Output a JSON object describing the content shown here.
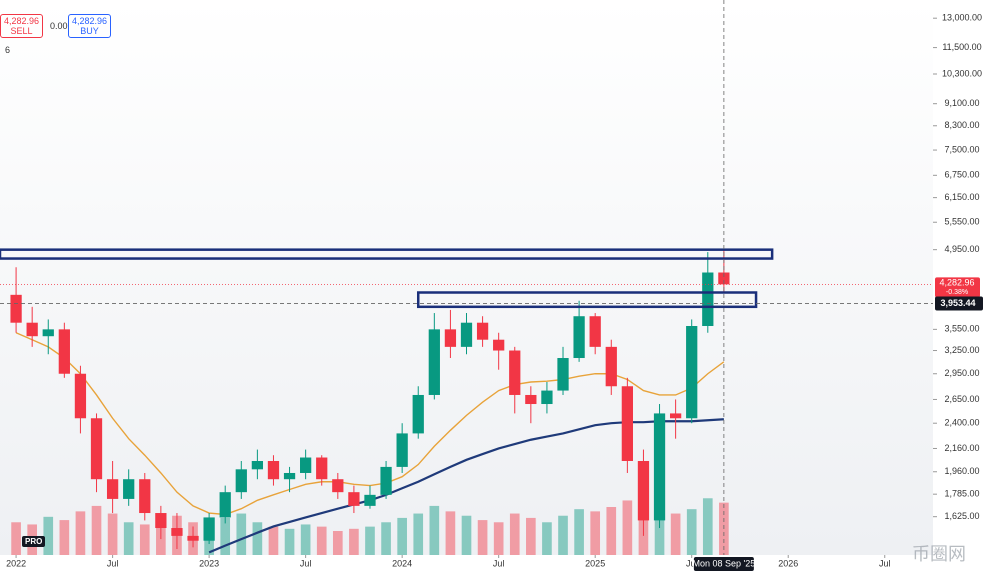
{
  "chart_data": {
    "type": "candlestick",
    "log_scale": true,
    "up_color": "#089981",
    "down_color": "#f23645",
    "x": [
      "2022-01",
      "2022-02",
      "2022-03",
      "2022-04",
      "2022-05",
      "2022-06",
      "2022-07",
      "2022-08",
      "2022-09",
      "2022-10",
      "2022-11",
      "2022-12",
      "2023-01",
      "2023-02",
      "2023-03",
      "2023-04",
      "2023-05",
      "2023-06",
      "2023-07",
      "2023-08",
      "2023-09",
      "2023-10",
      "2023-11",
      "2023-12",
      "2024-01",
      "2024-02",
      "2024-03",
      "2024-04",
      "2024-05",
      "2024-06",
      "2024-07",
      "2024-08",
      "2024-09",
      "2024-10",
      "2024-11",
      "2024-12",
      "2025-01",
      "2025-02",
      "2025-03",
      "2025-04",
      "2025-05",
      "2025-06",
      "2025-07",
      "2025-08",
      "2025-09"
    ],
    "candles": {
      "open": [
        4100,
        3650,
        3450,
        3550,
        2950,
        2450,
        1900,
        1750,
        1900,
        1650,
        1550,
        1500,
        1470,
        1620,
        1800,
        1980,
        2050,
        1900,
        1950,
        2080,
        1900,
        1800,
        1700,
        1780,
        2000,
        2300,
        2700,
        3550,
        3300,
        3650,
        3400,
        3250,
        2700,
        2600,
        2750,
        3150,
        3750,
        3300,
        2800,
        2050,
        1600,
        2500,
        2450,
        3600,
        4500
      ],
      "high": [
        4600,
        3900,
        3700,
        3650,
        3050,
        2500,
        2050,
        1980,
        1950,
        1700,
        1650,
        1560,
        1650,
        1850,
        2050,
        2150,
        2100,
        2000,
        2150,
        2100,
        1950,
        1850,
        1850,
        2050,
        2400,
        2800,
        3800,
        3850,
        3800,
        3750,
        3500,
        3300,
        2800,
        2850,
        3300,
        4000,
        3800,
        3400,
        2900,
        2150,
        2600,
        2650,
        3700,
        4900,
        4950
      ],
      "low": [
        3500,
        3300,
        3200,
        2900,
        2300,
        1800,
        1650,
        1700,
        1600,
        1480,
        1420,
        1430,
        1450,
        1580,
        1750,
        1900,
        1850,
        1800,
        1900,
        1850,
        1750,
        1650,
        1680,
        1750,
        1950,
        2250,
        2650,
        3150,
        3200,
        3300,
        3000,
        2500,
        2400,
        2500,
        2700,
        3100,
        3200,
        2700,
        1950,
        1500,
        1550,
        2250,
        2400,
        3500,
        4150
      ],
      "close": [
        3650,
        3450,
        3550,
        2950,
        2450,
        1900,
        1750,
        1900,
        1650,
        1550,
        1500,
        1470,
        1620,
        1800,
        1980,
        2050,
        1900,
        1950,
        2080,
        1900,
        1800,
        1700,
        1780,
        2000,
        2300,
        2700,
        3550,
        3300,
        3650,
        3400,
        3250,
        2700,
        2600,
        2750,
        3150,
        3750,
        3300,
        2800,
        2050,
        1600,
        2500,
        2450,
        3600,
        4500,
        4282.96
      ]
    },
    "volume": [
      30,
      28,
      35,
      32,
      40,
      45,
      38,
      30,
      28,
      33,
      36,
      30,
      32,
      34,
      38,
      30,
      26,
      24,
      28,
      26,
      22,
      24,
      26,
      30,
      34,
      38,
      45,
      40,
      36,
      32,
      30,
      38,
      34,
      30,
      36,
      42,
      40,
      44,
      50,
      55,
      45,
      38,
      42,
      52,
      48
    ],
    "series": [
      {
        "color": "#e8a33a",
        "values": [
          3500,
          3400,
          3300,
          3150,
          2950,
          2700,
          2450,
          2250,
          2100,
          1950,
          1800,
          1700,
          1650,
          1640,
          1680,
          1740,
          1780,
          1820,
          1860,
          1880,
          1880,
          1860,
          1850,
          1870,
          1920,
          2020,
          2180,
          2330,
          2480,
          2620,
          2750,
          2820,
          2850,
          2860,
          2880,
          2920,
          2950,
          2950,
          2880,
          2750,
          2700,
          2700,
          2780,
          2950,
          3100
        ]
      },
      {
        "color": "#1f3a7a",
        "values": [
          null,
          null,
          null,
          null,
          null,
          null,
          null,
          null,
          null,
          null,
          null,
          null,
          1400,
          1440,
          1480,
          1520,
          1560,
          1590,
          1620,
          1650,
          1680,
          1710,
          1740,
          1780,
          1830,
          1880,
          1940,
          2000,
          2060,
          2110,
          2160,
          2200,
          2240,
          2270,
          2300,
          2340,
          2380,
          2400,
          2410,
          2410,
          2420,
          2420,
          2420,
          2430,
          2440
        ]
      }
    ],
    "zones": [
      {
        "low": 4770,
        "high": 4950,
        "start": "2021-12",
        "end": "2025-12"
      },
      {
        "low": 3900,
        "high": 4140,
        "start": "2024-02",
        "end": "2025-11"
      }
    ],
    "xlim": [
      "2021-12",
      "2026-10"
    ],
    "xticks": [
      {
        "value": "2022-01",
        "label": "2022"
      },
      {
        "value": "2022-07",
        "label": "Jul"
      },
      {
        "value": "2023-01",
        "label": "2023"
      },
      {
        "value": "2023-07",
        "label": "Jul"
      },
      {
        "value": "2024-01",
        "label": "2024"
      },
      {
        "value": "2024-07",
        "label": "Jul"
      },
      {
        "value": "2025-01",
        "label": "2025"
      },
      {
        "value": "2025-07",
        "label": "Jul"
      },
      {
        "value": "2026-01",
        "label": "2026"
      },
      {
        "value": "2026-07",
        "label": "Jul"
      }
    ],
    "ylim": [
      1385,
      14025
    ],
    "yticks": [
      {
        "value": 13000,
        "label": "13,000.00"
      },
      {
        "value": 11500,
        "label": "11,500.00"
      },
      {
        "value": 10300,
        "label": "10,300.00"
      },
      {
        "value": 9100,
        "label": "9,100.00"
      },
      {
        "value": 8300,
        "label": "8,300.00"
      },
      {
        "value": 7500,
        "label": "7,500.00"
      },
      {
        "value": 6750,
        "label": "6,750.00"
      },
      {
        "value": 6150,
        "label": "6,150.00"
      },
      {
        "value": 5550,
        "label": "5,550.00"
      },
      {
        "value": 4950,
        "label": "4,950.00"
      },
      {
        "value": 3550,
        "label": "3,550.00"
      },
      {
        "value": 3250,
        "label": "3,250.00"
      },
      {
        "value": 2950,
        "label": "2,950.00"
      },
      {
        "value": 2650,
        "label": "2,650.00"
      },
      {
        "value": 2400,
        "label": "2,400.00"
      },
      {
        "value": 2160,
        "label": "2,160.00"
      },
      {
        "value": 1960,
        "label": "1,960.00"
      },
      {
        "value": 1785,
        "label": "1,785.00"
      },
      {
        "value": 1625,
        "label": "1,625.00"
      }
    ],
    "price_label": {
      "value": 4282.96,
      "label": "4,282.96",
      "change": "-0.38%"
    },
    "crosshair": {
      "value": 3953.44,
      "label": "3,953.44",
      "date": "Mon 08 Sep '25"
    }
  },
  "trade_panel": {
    "sell_price": "4,282.96",
    "sell": "SELL",
    "spread": "0.00",
    "buy_price": "4,282.96",
    "buy": "BUY",
    "interval": "6"
  },
  "logo": "PRO",
  "watermark": "币圈网"
}
